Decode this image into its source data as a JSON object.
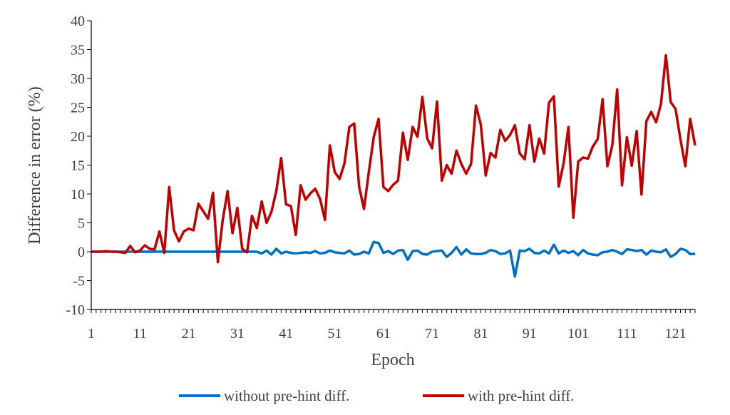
{
  "chart_data": {
    "type": "line",
    "xlabel": "Epoch",
    "ylabel": "Difference in error (%)",
    "xlim": [
      1,
      125
    ],
    "ylim": [
      -10,
      40
    ],
    "x_ticks": [
      "1",
      "11",
      "21",
      "31",
      "41",
      "51",
      "61",
      "71",
      "81",
      "91",
      "101",
      "111",
      "121"
    ],
    "y_ticks": [
      "40",
      "35",
      "30",
      "25",
      "20",
      "15",
      "10",
      "5",
      "0",
      "-5",
      "-10"
    ],
    "grid": false,
    "legend_position": "bottom",
    "series": [
      {
        "name": "without pre-hint diff.",
        "color": "#0070C0",
        "x": [
          1,
          2,
          3,
          4,
          5,
          6,
          7,
          8,
          9,
          10,
          11,
          12,
          13,
          14,
          15,
          16,
          17,
          18,
          19,
          20,
          21,
          22,
          23,
          24,
          25,
          26,
          27,
          28,
          29,
          30,
          31,
          32,
          33,
          34,
          35,
          36,
          37,
          38,
          39,
          40,
          41,
          42,
          43,
          44,
          45,
          46,
          47,
          48,
          49,
          50,
          51,
          52,
          53,
          54,
          55,
          56,
          57,
          58,
          59,
          60,
          61,
          62,
          63,
          64,
          65,
          66,
          67,
          68,
          69,
          70,
          71,
          72,
          73,
          74,
          75,
          76,
          77,
          78,
          79,
          80,
          81,
          82,
          83,
          84,
          85,
          86,
          87,
          88,
          89,
          90,
          91,
          92,
          93,
          94,
          95,
          96,
          97,
          98,
          99,
          100,
          101,
          102,
          103,
          104,
          105,
          106,
          107,
          108,
          109,
          110,
          111,
          112,
          113,
          114,
          115,
          116,
          117,
          118,
          119,
          120,
          121,
          122,
          123,
          124,
          125
        ],
        "values": [
          0,
          0,
          0,
          0,
          0,
          0,
          0,
          0,
          0,
          0,
          0,
          0,
          0,
          0,
          0,
          0,
          0,
          0,
          0,
          0,
          0,
          0,
          0,
          0,
          0,
          0,
          0,
          0,
          0,
          0,
          0,
          0,
          0,
          0,
          0,
          -0.3,
          0.2,
          -0.5,
          0.5,
          -0.3,
          0,
          -0.2,
          -0.3,
          -0.2,
          -0.1,
          -0.2,
          0.1,
          -0.3,
          -0.2,
          0.2,
          -0.1,
          -0.2,
          -0.3,
          0.2,
          -0.5,
          -0.4,
          0,
          -0.3,
          1.7,
          1.5,
          -0.2,
          0.1,
          -0.4,
          0.2,
          0.3,
          -1.4,
          0.1,
          0.2,
          -0.4,
          -0.5,
          0,
          0.1,
          0.2,
          -0.9,
          -0.2,
          0.8,
          -0.5,
          0.4,
          -0.3,
          -0.4,
          -0.4,
          -0.2,
          0.3,
          0.1,
          -0.4,
          -0.3,
          0.2,
          -4.3,
          0.2,
          0.1,
          0.5,
          -0.2,
          -0.3,
          0.2,
          -0.3,
          1.2,
          -0.3,
          0.2,
          -0.2,
          0.1,
          -0.6,
          0.3,
          -0.3,
          -0.5,
          -0.6,
          -0.1,
          0,
          0.3,
          0,
          -0.4,
          0.4,
          0.3,
          0.1,
          0.3,
          -0.5,
          0.2,
          0,
          -0.1,
          0.4,
          -0.9,
          -0.4,
          0.5,
          0.3,
          -0.4,
          -0.4
        ]
      },
      {
        "name": "with pre-hint diff.",
        "color": "#C00000",
        "x": [
          1,
          2,
          3,
          4,
          5,
          6,
          7,
          8,
          9,
          10,
          11,
          12,
          13,
          14,
          15,
          16,
          17,
          18,
          19,
          20,
          21,
          22,
          23,
          24,
          25,
          26,
          27,
          28,
          29,
          30,
          31,
          32,
          33,
          34,
          35,
          36,
          37,
          38,
          39,
          40,
          41,
          42,
          43,
          44,
          45,
          46,
          47,
          48,
          49,
          50,
          51,
          52,
          53,
          54,
          55,
          56,
          57,
          58,
          59,
          60,
          61,
          62,
          63,
          64,
          65,
          66,
          67,
          68,
          69,
          70,
          71,
          72,
          73,
          74,
          75,
          76,
          77,
          78,
          79,
          80,
          81,
          82,
          83,
          84,
          85,
          86,
          87,
          88,
          89,
          90,
          91,
          92,
          93,
          94,
          95,
          96,
          97,
          98,
          99,
          100,
          101,
          102,
          103,
          104,
          105,
          106,
          107,
          108,
          109,
          110,
          111,
          112,
          113,
          114,
          115,
          116,
          117,
          118,
          119,
          120,
          121,
          122,
          123,
          124,
          125
        ],
        "values": [
          0,
          0,
          0,
          0.1,
          0,
          0,
          -0.1,
          -0.2,
          1.0,
          -0.1,
          0.2,
          1.1,
          0.5,
          0.4,
          3.5,
          -0.2,
          11.2,
          3.7,
          1.8,
          3.5,
          4.0,
          3.7,
          8.3,
          7.0,
          5.7,
          10.2,
          -1.8,
          5.5,
          10.5,
          3.2,
          7.6,
          0.5,
          -0.1,
          6.2,
          4.1,
          8.7,
          5.0,
          6.9,
          10.5,
          16.2,
          8.2,
          7.9,
          2.9,
          11.5,
          9.0,
          10.1,
          10.9,
          9.1,
          5.5,
          18.4,
          13.8,
          12.6,
          15.3,
          21.6,
          22.2,
          11.3,
          7.4,
          13.8,
          19.8,
          23.0,
          11.2,
          10.5,
          11.6,
          12.3,
          20.6,
          15.9,
          21.6,
          19.9,
          26.8,
          19.6,
          17.9,
          26.0,
          12.3,
          15.0,
          13.5,
          17.5,
          15.2,
          13.5,
          15.2,
          25.3,
          22.0,
          13.2,
          17.1,
          16.3,
          21.1,
          19.2,
          20.2,
          21.9,
          17.0,
          16.0,
          21.9,
          15.6,
          19.6,
          17.0,
          25.8,
          26.9,
          11.3,
          15.3,
          21.6,
          5.9,
          15.6,
          16.3,
          16.1,
          18.2,
          19.5,
          26.4,
          14.8,
          18.4,
          28.1,
          11.5,
          19.8,
          14.9,
          20.9,
          9.9,
          22.6,
          24.2,
          22.4,
          25.6,
          34.0,
          25.9,
          24.7,
          19.4,
          14.8,
          23.0,
          18.4
        ]
      }
    ]
  }
}
